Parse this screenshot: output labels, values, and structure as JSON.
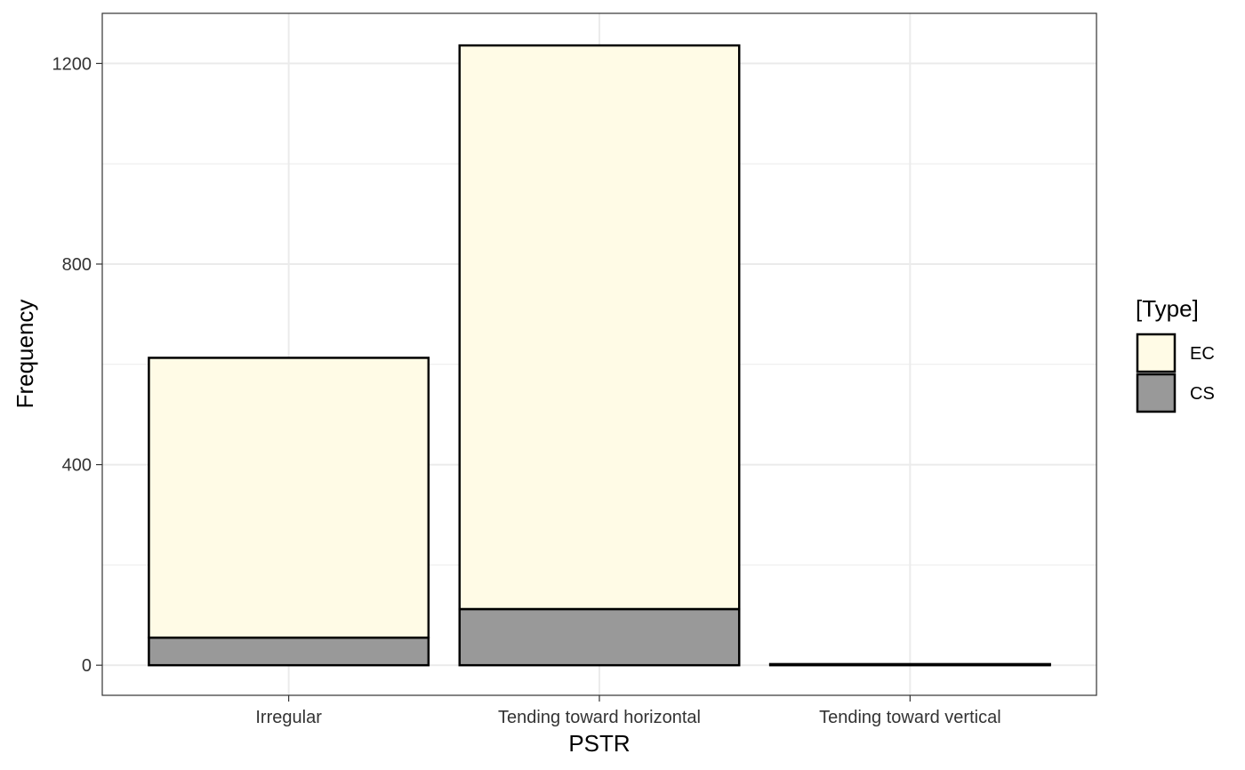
{
  "chart_data": {
    "type": "bar",
    "stacked": true,
    "categories": [
      "Irregular",
      "Tending toward horizontal",
      "Tending toward vertical"
    ],
    "series": [
      {
        "name": "CS",
        "values": [
          55,
          112,
          2
        ],
        "color": "#999999"
      },
      {
        "name": "EC",
        "values": [
          558,
          1124,
          0
        ],
        "color": "#FFFBE6"
      }
    ],
    "xlabel": "PSTR",
    "ylabel": "Frequency",
    "yticks": [
      0,
      400,
      800,
      1200
    ],
    "ylim": [
      -60,
      1300
    ],
    "grid": true,
    "legend": {
      "title": "[Type]",
      "position": "right",
      "entries": [
        {
          "label": "EC",
          "color": "#FFFBE6"
        },
        {
          "label": "CS",
          "color": "#999999"
        }
      ]
    }
  }
}
